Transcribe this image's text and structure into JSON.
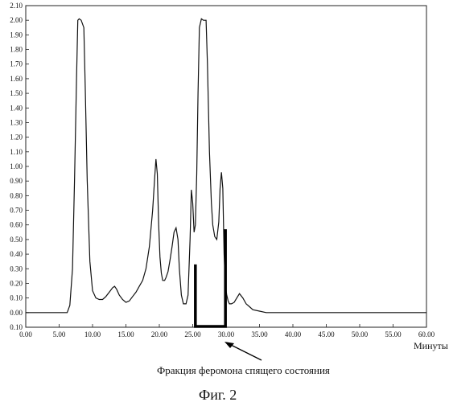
{
  "chart_data": {
    "type": "line",
    "xlabel": "Минуты",
    "ylabel": "",
    "xlim": [
      0,
      60
    ],
    "ylim": [
      -0.1,
      2.1
    ],
    "grid": false,
    "x_ticks": [
      0,
      5,
      10,
      15,
      20,
      25,
      30,
      35,
      40,
      45,
      50,
      55,
      60
    ],
    "x_tick_labels": [
      "0.00",
      "5.00",
      "10.00",
      "15.00",
      "20.00",
      "25.00",
      "30.00",
      "35.00",
      "40.00",
      "45.00",
      "50.00",
      "55.00",
      "60.00"
    ],
    "y_ticks": [
      -0.1,
      0,
      0.1,
      0.2,
      0.3,
      0.4,
      0.5,
      0.6,
      0.7,
      0.8,
      0.9,
      1.0,
      1.1,
      1.2,
      1.3,
      1.4,
      1.5,
      1.6,
      1.7,
      1.8,
      1.9,
      2.0,
      2.1
    ],
    "y_tick_labels": [
      "0.10",
      "0.00",
      "0.10",
      "0.20",
      "0.30",
      "0.40",
      "0.50",
      "0.60",
      "0.70",
      "0.80",
      "0.90",
      "1.00",
      "1.10",
      "1.20",
      "1.30",
      "1.40",
      "1.50",
      "1.60",
      "1.70",
      "1.80",
      "1.90",
      "2.00",
      "2.10"
    ],
    "series": [
      {
        "x": [
          0,
          6.2,
          6.6,
          7.0,
          7.3,
          7.6,
          7.8,
          8.0,
          8.3,
          8.7,
          8.9,
          9.2,
          9.6,
          10.0,
          10.5,
          11.0,
          11.5,
          12.0,
          12.5,
          13.0,
          13.3,
          13.6,
          14.0,
          14.5,
          15.0,
          15.5,
          16.0,
          16.5,
          17.0,
          17.5,
          18.0,
          18.5,
          19.0,
          19.3,
          19.5,
          19.7,
          19.9,
          20.1,
          20.3,
          20.5,
          20.8,
          21.0,
          21.3,
          21.6,
          21.9,
          22.2,
          22.5,
          22.8,
          23.0,
          23.3,
          23.6,
          24.0,
          24.3,
          24.6,
          24.8,
          25.0,
          25.2,
          25.4,
          25.6,
          25.8,
          26.0,
          26.3,
          26.6,
          26.8,
          27.0,
          27.2,
          27.5,
          27.8,
          28.0,
          28.3,
          28.6,
          28.9,
          29.1,
          29.3,
          29.5,
          29.7,
          29.9,
          30.1,
          30.3,
          30.5,
          30.8,
          31.2,
          31.6,
          32.0,
          32.5,
          33.0,
          33.5,
          34.0,
          35.0,
          36.0,
          37.0,
          38.0,
          40.0,
          45.0,
          50.0,
          55.0,
          60.0
        ],
        "y": [
          0.0,
          0.0,
          0.05,
          0.3,
          0.9,
          1.6,
          2.0,
          2.01,
          2.0,
          1.95,
          1.55,
          0.9,
          0.35,
          0.15,
          0.1,
          0.09,
          0.09,
          0.11,
          0.14,
          0.17,
          0.18,
          0.16,
          0.12,
          0.09,
          0.07,
          0.08,
          0.11,
          0.14,
          0.18,
          0.22,
          0.3,
          0.45,
          0.7,
          0.92,
          1.05,
          0.95,
          0.6,
          0.38,
          0.27,
          0.22,
          0.22,
          0.24,
          0.28,
          0.36,
          0.45,
          0.55,
          0.58,
          0.5,
          0.3,
          0.12,
          0.06,
          0.06,
          0.12,
          0.5,
          0.84,
          0.75,
          0.55,
          0.6,
          0.95,
          1.5,
          1.95,
          2.01,
          2.0,
          2.0,
          2.0,
          1.7,
          1.1,
          0.75,
          0.6,
          0.52,
          0.5,
          0.62,
          0.85,
          0.96,
          0.85,
          0.4,
          0.18,
          0.12,
          0.08,
          0.06,
          0.06,
          0.07,
          0.1,
          0.13,
          0.1,
          0.06,
          0.04,
          0.02,
          0.01,
          0.0,
          0.0,
          0.0,
          0.0,
          0.0,
          0.0,
          0.0,
          0.0
        ]
      }
    ],
    "fraction_bracket": {
      "x_start": 25.4,
      "x_end": 29.9,
      "left_top": 0.33,
      "right_top": 0.57,
      "bottom": -0.1
    },
    "annotation": {
      "text": "Фракция феромона спящего состояния",
      "arrow_target_x": 30.0
    },
    "caption": "Фиг. 2",
    "colors": {
      "line": "#111111",
      "bracket": "#000000",
      "frame": "#222222"
    }
  }
}
